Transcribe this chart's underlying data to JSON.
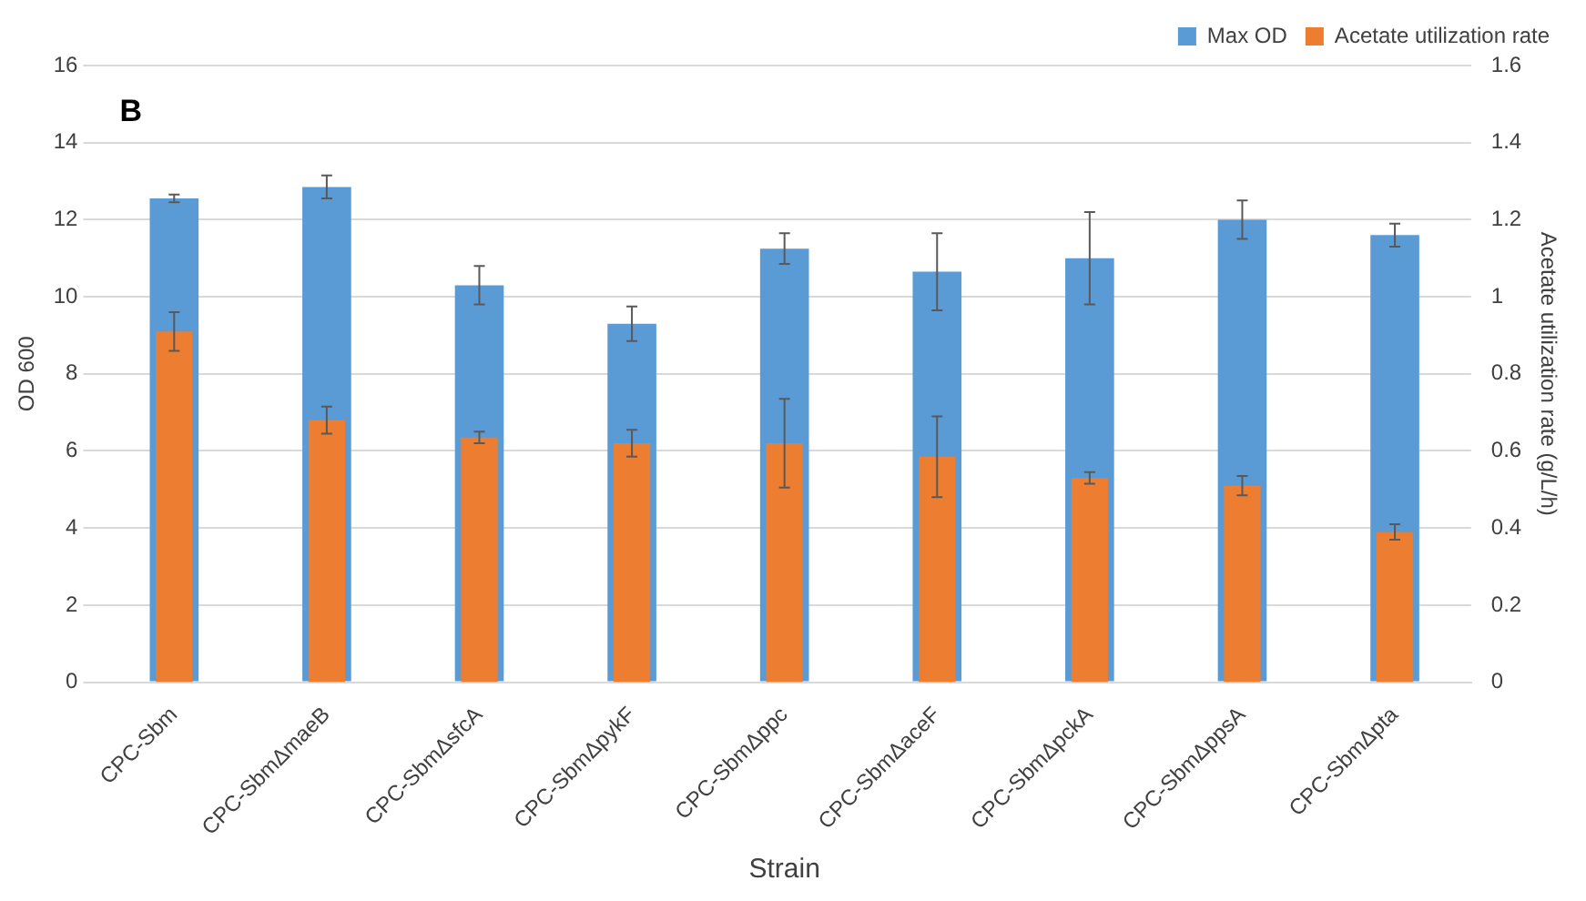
{
  "chart_data": {
    "type": "bar",
    "xlabel": "Strain",
    "ylabel": "OD 600",
    "y2label": "Acetate utilization rate (g/L/h)",
    "annotations": [
      "B"
    ],
    "categories": [
      "CPC-Sbm",
      "CPC-SbmΔmaeB",
      "CPC-SbmΔsfcA",
      "CPC-SbmΔpykF",
      "CPC-SbmΔppc",
      "CPC-SbmΔaceF",
      "CPC-SbmΔpckA",
      "CPC-SbmΔppsA",
      "CPC-SbmΔpta"
    ],
    "series": [
      {
        "name": "Max OD",
        "color": "#5b9bd5",
        "values": [
          12.55,
          12.85,
          10.3,
          9.3,
          11.25,
          10.65,
          11.0,
          12.0,
          11.6
        ],
        "errors": [
          0.1,
          0.3,
          0.5,
          0.45,
          0.4,
          1.0,
          1.2,
          0.5,
          0.3
        ]
      },
      {
        "name": "Acetate utilization rate",
        "color": "#ed7d31",
        "axis": "y2",
        "values": [
          0.91,
          0.68,
          0.635,
          0.62,
          0.62,
          0.585,
          0.53,
          0.51,
          0.39
        ],
        "errors": [
          0.05,
          0.035,
          0.015,
          0.035,
          0.115,
          0.105,
          0.015,
          0.025,
          0.02
        ]
      }
    ],
    "ylim": [
      0,
      16
    ],
    "yticks": [
      0,
      2,
      4,
      6,
      8,
      10,
      12,
      14,
      16
    ],
    "y2lim": [
      0,
      1.6
    ],
    "y2ticks": [
      0,
      0.2,
      0.4,
      0.6,
      0.8,
      1,
      1.2,
      1.4,
      1.6
    ],
    "grid": "y",
    "legend": "top right"
  }
}
